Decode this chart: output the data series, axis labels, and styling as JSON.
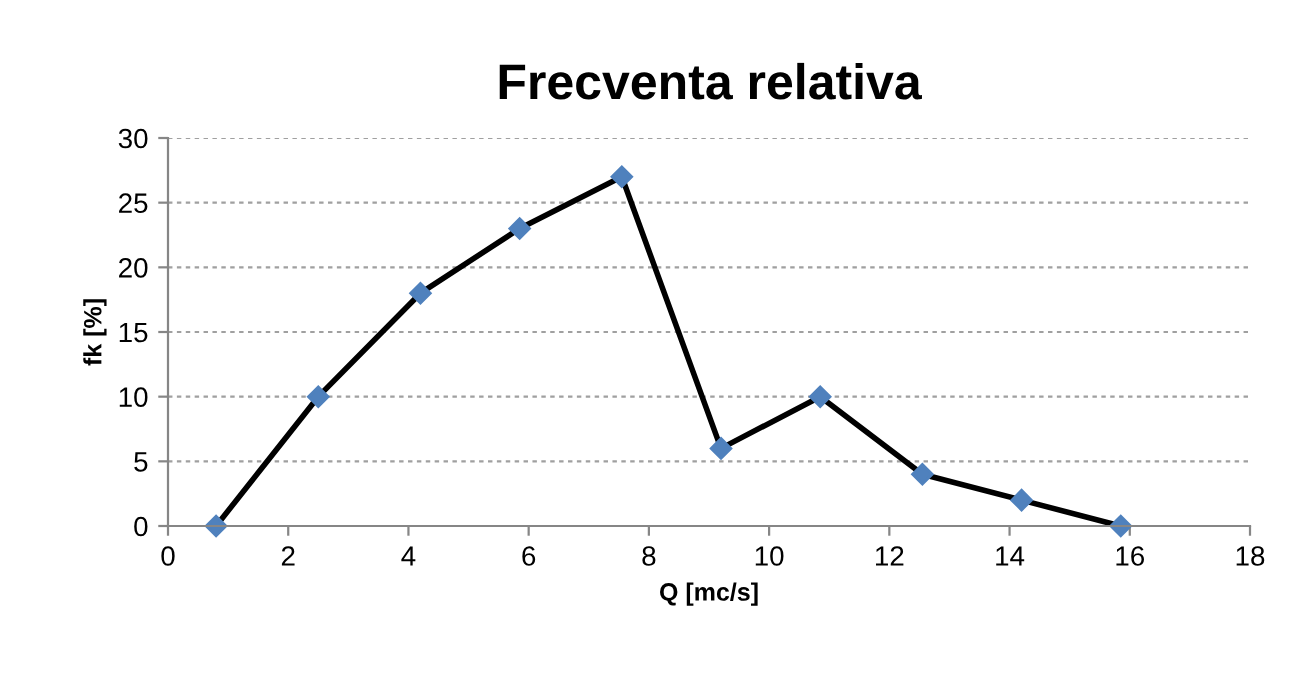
{
  "chart_data": {
    "type": "line",
    "title": "Frecventa relativa",
    "xlabel": "Q [mc/s]",
    "ylabel": "fk [%]",
    "series": [
      {
        "color": "#000000",
        "x": [
          0.8,
          2.5,
          4.2,
          5.85,
          7.55,
          9.2,
          10.85,
          12.55,
          14.2,
          15.85
        ],
        "values": [
          0,
          10,
          18,
          23,
          27,
          6,
          10,
          4,
          2,
          0
        ]
      }
    ],
    "xlim": [
      0,
      18
    ],
    "xticks": [
      0,
      2,
      4,
      6,
      8,
      10,
      12,
      14,
      16,
      18
    ],
    "ylim": [
      0,
      30
    ],
    "yticks": [
      0,
      5,
      10,
      15,
      20,
      25,
      30
    ],
    "grid": "y",
    "marker": "diamond",
    "line_style": "solid",
    "legend": false
  }
}
